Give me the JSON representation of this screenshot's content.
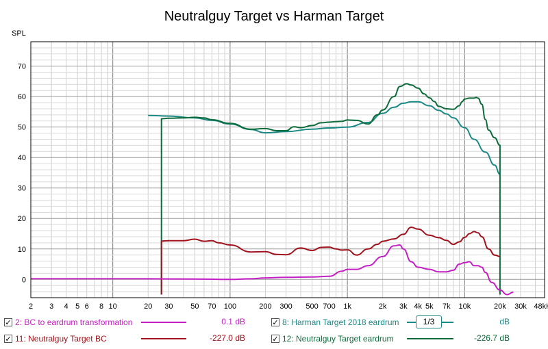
{
  "chart_data": {
    "type": "line",
    "title": "Neutralguy Target vs Harman Target",
    "ylabel": "SPL",
    "xlabel": "",
    "x_scale": "log",
    "xlim": [
      2,
      48000
    ],
    "ylim": [
      -6,
      78
    ],
    "x_ticks": [
      2,
      3,
      4,
      5,
      6,
      8,
      10,
      20,
      30,
      50,
      70,
      100,
      200,
      300,
      500,
      700,
      1000,
      2000,
      3000,
      4000,
      5000,
      7000,
      10000,
      20000,
      30000,
      48000
    ],
    "x_tick_labels": [
      "2",
      "3",
      "4",
      "5",
      "6",
      "8",
      "10",
      "20",
      "30",
      "50",
      "70",
      "100",
      "200",
      "300",
      "500",
      "700",
      "1k",
      "2k",
      "3k",
      "4k",
      "5k",
      "7k",
      "10k",
      "20k",
      "30k",
      "48kHz"
    ],
    "y_ticks": [
      0,
      10,
      20,
      30,
      40,
      50,
      60,
      70
    ],
    "y_tick_labels": [
      "0",
      "10",
      "20",
      "30",
      "40",
      "50",
      "60",
      "70"
    ],
    "grid": true,
    "legend_placement": "bottom",
    "series": [
      {
        "name": "Harman Target 2018 eardrum",
        "color": "#1b8a85",
        "x": [
          20,
          30,
          50,
          70,
          100,
          150,
          200,
          300,
          500,
          700,
          1000,
          1500,
          2000,
          2500,
          3000,
          3500,
          4000,
          5000,
          6000,
          7000,
          8000,
          10000,
          12000,
          15000,
          18000,
          20000
        ],
        "y": [
          53.8,
          53.6,
          53.0,
          52.2,
          51.0,
          49.2,
          48.1,
          48.5,
          49.3,
          49.7,
          50.0,
          51.5,
          54.5,
          56.5,
          57.8,
          58.3,
          58.3,
          57.0,
          55.5,
          54.3,
          53.0,
          49.8,
          46.0,
          41.8,
          37.5,
          34.5
        ]
      },
      {
        "name": "Neutralguy Target eardrum",
        "color": "#0c6b3a",
        "x": [
          26,
          26,
          30,
          40,
          50,
          60,
          70,
          100,
          150,
          200,
          250,
          300,
          350,
          400,
          500,
          600,
          700,
          800,
          900,
          1000,
          1200,
          1500,
          1800,
          2000,
          2500,
          2800,
          3200,
          3500,
          4000,
          4500,
          5000,
          5500,
          6000,
          7000,
          8000,
          9000,
          9500,
          10000,
          11000,
          12000,
          12500,
          13000,
          14000,
          15000,
          16000,
          18000,
          20000,
          20000
        ],
        "y": [
          -5.0,
          52.7,
          52.9,
          53.0,
          53.2,
          53.0,
          52.4,
          51.2,
          49.3,
          49.5,
          48.8,
          48.8,
          50.1,
          49.8,
          50.5,
          51.4,
          51.6,
          51.8,
          51.9,
          52.3,
          52.2,
          51.0,
          54.0,
          55.6,
          60.0,
          63.3,
          64.2,
          63.8,
          62.8,
          60.9,
          59.6,
          58.4,
          56.8,
          56.0,
          55.8,
          57.0,
          58.3,
          59.2,
          59.5,
          59.5,
          59.7,
          59.5,
          57.5,
          52.5,
          49.0,
          46.5,
          44.0,
          -5.0
        ]
      },
      {
        "name": "Neutralguy Target BC",
        "color": "#a0121c",
        "x": [
          26,
          26,
          30,
          40,
          50,
          60,
          70,
          80,
          100,
          150,
          200,
          250,
          300,
          400,
          500,
          600,
          700,
          800,
          900,
          1000,
          1200,
          1500,
          1800,
          2000,
          2500,
          3000,
          3500,
          4000,
          5000,
          6000,
          7000,
          8000,
          9000,
          10000,
          11000,
          12000,
          13000,
          14000,
          16000,
          18000,
          20000
        ],
        "y": [
          -5.0,
          12.6,
          12.7,
          12.7,
          13.2,
          12.5,
          12.7,
          12.0,
          11.3,
          9.0,
          9.1,
          8.2,
          8.1,
          10.3,
          9.5,
          10.5,
          10.6,
          10.0,
          9.6,
          9.7,
          8.0,
          10.0,
          11.5,
          12.5,
          13.3,
          14.8,
          17.1,
          16.5,
          14.5,
          13.7,
          12.8,
          11.5,
          12.3,
          13.8,
          15.0,
          15.7,
          15.3,
          14.0,
          10.0,
          8.0,
          7.5
        ]
      },
      {
        "name": "BC to eardrum transformation",
        "color": "#c41fc4",
        "x": [
          2,
          5,
          10,
          20,
          50,
          100,
          150,
          200,
          300,
          500,
          700,
          900,
          1000,
          1200,
          1500,
          2000,
          2500,
          2800,
          3000,
          3500,
          4000,
          5000,
          6000,
          7000,
          8000,
          9000,
          10000,
          11000,
          12000,
          13000,
          14000,
          15000,
          17000,
          20000,
          23000,
          26000
        ],
        "y": [
          0.2,
          0.2,
          0.2,
          0.2,
          0.1,
          0.0,
          0.2,
          0.5,
          0.7,
          0.8,
          1.0,
          2.7,
          3.3,
          3.3,
          4.5,
          7.5,
          11.0,
          11.3,
          10.0,
          5.8,
          4.0,
          3.3,
          2.5,
          2.5,
          3.0,
          5.0,
          5.5,
          5.8,
          4.5,
          4.5,
          4.0,
          2.3,
          -1.0,
          -3.5,
          -5.0,
          -4.2
        ]
      }
    ]
  },
  "legend": [
    {
      "checked": "✓",
      "label": "2: BC to eardrum transformation",
      "value": "0.1 dB",
      "color": "#c41fc4"
    },
    {
      "checked": "✓",
      "label": "8: Harman Target 2018 eardrum",
      "value": "dB",
      "color": "#1b8a85",
      "smoothing": "1/3"
    },
    {
      "checked": "✓",
      "label": "11: Neutralguy Target BC",
      "value": "-227.0 dB",
      "color": "#a0121c"
    },
    {
      "checked": "✓",
      "label": "12: Neutralguy Target eardrum",
      "value": "-226.7 dB",
      "color": "#0c6b3a"
    }
  ]
}
